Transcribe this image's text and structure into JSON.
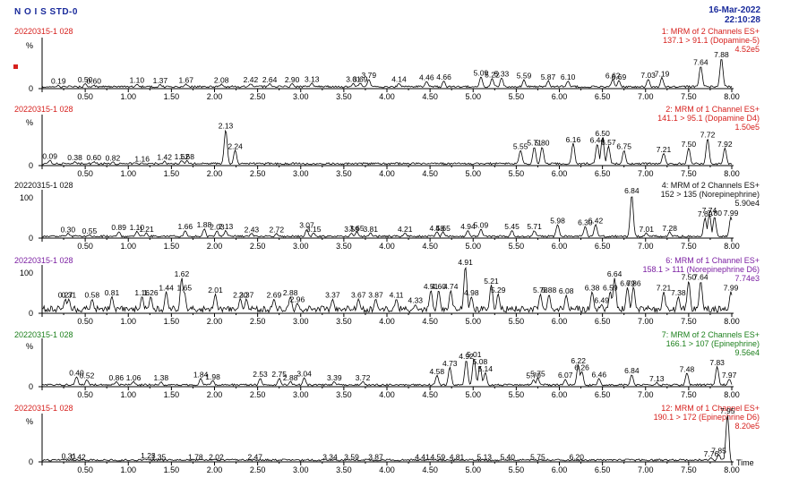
{
  "header": {
    "title": "N O I S STD-0",
    "date": "16-Mar-2022",
    "time": "22:10:28"
  },
  "xaxis": {
    "ticks": [
      "0.50",
      "1.00",
      "1.50",
      "2.00",
      "2.50",
      "3.00",
      "3.50",
      "4.00",
      "4.50",
      "5.00",
      "5.50",
      "6.00",
      "6.50",
      "7.00",
      "7.50",
      "8.00"
    ],
    "unit": "Time"
  },
  "chart_data": [
    {
      "type": "line",
      "sample": "20220315-1 028",
      "channel": "1: MRM of 2 Channels ES+",
      "transition": "137.1 > 91.1 (Dopamine-5)",
      "intensity": "4.52e5",
      "color": "#d6201d",
      "marker_color": "#d6201d",
      "ylim": [
        0,
        100
      ],
      "ytick": "%",
      "ytick_zero": "0",
      "peaks": [
        [
          0.19,
          "0.19"
        ],
        [
          0.5,
          "0.50"
        ],
        [
          0.6,
          "0.60"
        ],
        [
          1.1,
          "1.10"
        ],
        [
          1.37,
          "1.37"
        ],
        [
          1.67,
          "1.67"
        ],
        [
          2.08,
          "2.08"
        ],
        [
          2.42,
          "2.42"
        ],
        [
          2.64,
          "2.64"
        ],
        [
          2.9,
          "2.90"
        ],
        [
          3.13,
          "3.13"
        ],
        [
          3.61,
          "3.61"
        ],
        [
          3.69,
          "3.69"
        ],
        [
          3.79,
          "3.79"
        ],
        [
          4.14,
          "4.14"
        ],
        [
          4.46,
          "4.46"
        ],
        [
          4.66,
          "4.66"
        ],
        [
          5.09,
          "5.09"
        ],
        [
          5.22,
          "5.22"
        ],
        [
          5.33,
          "5.33"
        ],
        [
          5.59,
          "5.59"
        ],
        [
          5.87,
          "5.87"
        ],
        [
          6.1,
          "6.10"
        ],
        [
          6.62,
          "6.62"
        ],
        [
          6.69,
          "6.69"
        ],
        [
          7.03,
          "7.03"
        ],
        [
          7.19,
          "7.19"
        ],
        [
          7.64,
          "7.64"
        ],
        [
          7.88,
          "7.88"
        ]
      ],
      "peak_heights": [
        6,
        9,
        6,
        8,
        7,
        8,
        8,
        9,
        9,
        9,
        10,
        10,
        10,
        18,
        10,
        14,
        15,
        23,
        19,
        21,
        17,
        15,
        15,
        17,
        15,
        18,
        21,
        45,
        60
      ]
    },
    {
      "type": "line",
      "sample": "20220315-1 028",
      "channel": "2: MRM of 1 Channel ES+",
      "transition": "141.1 > 95.1 (Dopamine D4)",
      "intensity": "1.50e5",
      "color": "#d6201d",
      "ylim": [
        0,
        100
      ],
      "ytick": "%",
      "ytick_zero": "0",
      "peaks": [
        [
          0.09,
          "0.09"
        ],
        [
          0.38,
          "0.38"
        ],
        [
          0.6,
          "0.60"
        ],
        [
          0.82,
          "0.82"
        ],
        [
          1.16,
          "1.16"
        ],
        [
          1.42,
          "1.42"
        ],
        [
          1.62,
          "1.62"
        ],
        [
          1.68,
          "1.68"
        ],
        [
          2.13,
          "2.13"
        ],
        [
          2.24,
          "2.24"
        ],
        [
          5.55,
          "5.55"
        ],
        [
          5.71,
          "5.71"
        ],
        [
          5.8,
          "5.80"
        ],
        [
          6.16,
          "6.16"
        ],
        [
          6.44,
          "6.44"
        ],
        [
          6.5,
          "6.50"
        ],
        [
          6.57,
          "6.57"
        ],
        [
          6.75,
          "6.75"
        ],
        [
          7.21,
          "7.21"
        ],
        [
          7.5,
          "7.50"
        ],
        [
          7.72,
          "7.72"
        ],
        [
          7.92,
          "7.92"
        ]
      ],
      "peak_heights": [
        10,
        7,
        7,
        6,
        5,
        8,
        9,
        9,
        72,
        30,
        30,
        37,
        37,
        44,
        43,
        56,
        38,
        30,
        24,
        35,
        54,
        35
      ]
    },
    {
      "type": "line",
      "sample": "20220315-1 028",
      "channel": "4: MRM of 2 Channels ES+",
      "transition": "152 > 135 (Norepinephrine)",
      "intensity": "5.90e4",
      "color": "#111111",
      "ylim": [
        0,
        100
      ],
      "ytick": "100",
      "ytick_zero": "0",
      "peaks": [
        [
          0.3,
          "0.30"
        ],
        [
          0.55,
          "0.55"
        ],
        [
          0.89,
          "0.89"
        ],
        [
          1.1,
          "1.10"
        ],
        [
          1.21,
          "1.21"
        ],
        [
          1.66,
          "1.66"
        ],
        [
          1.88,
          "1.88"
        ],
        [
          2.03,
          "2.03"
        ],
        [
          2.13,
          "2.13"
        ],
        [
          2.43,
          "2.43"
        ],
        [
          2.72,
          "2.72"
        ],
        [
          3.07,
          "3.07"
        ],
        [
          3.15,
          "3.15"
        ],
        [
          3.59,
          "3.59"
        ],
        [
          3.65,
          "3.65"
        ],
        [
          3.81,
          "3.81"
        ],
        [
          4.21,
          "4.21"
        ],
        [
          4.58,
          "4.58"
        ],
        [
          4.65,
          "4.65"
        ],
        [
          4.94,
          "4.94"
        ],
        [
          5.09,
          "5.09"
        ],
        [
          5.45,
          "5.45"
        ],
        [
          5.71,
          "5.71"
        ],
        [
          5.98,
          "5.98"
        ],
        [
          6.3,
          "6.30"
        ],
        [
          6.42,
          "6.42"
        ],
        [
          6.84,
          "6.84"
        ],
        [
          7.01,
          "7.01"
        ],
        [
          7.28,
          "7.28"
        ],
        [
          7.69,
          "7.69"
        ],
        [
          7.74,
          "7.74"
        ],
        [
          7.8,
          "7.80"
        ],
        [
          7.99,
          "7.99"
        ]
      ],
      "peak_heights": [
        9,
        6,
        13,
        13,
        10,
        15,
        19,
        14,
        15,
        9,
        9,
        18,
        10,
        10,
        12,
        10,
        10,
        12,
        12,
        15,
        18,
        15,
        15,
        28,
        24,
        28,
        92,
        10,
        12,
        42,
        50,
        44,
        44
      ]
    },
    {
      "type": "line",
      "sample": "20220315-1 028",
      "channel": "6: MRM of 1 Channel ES+",
      "transition": "158.1 > 111 (Norepinephrine D6)",
      "intensity": "7.74e3",
      "color": "#7b1fa2",
      "ylim": [
        0,
        100
      ],
      "ytick": "100",
      "ytick_zero": "0",
      "peaks": [
        [
          0.27,
          "0.27"
        ],
        [
          0.31,
          "0.31"
        ],
        [
          0.58,
          "0.58"
        ],
        [
          0.81,
          "0.81"
        ],
        [
          1.16,
          "1.16"
        ],
        [
          1.26,
          "1.26"
        ],
        [
          1.44,
          "1.44"
        ],
        [
          1.62,
          "1.62"
        ],
        [
          1.65,
          "1.65"
        ],
        [
          2.01,
          "2.01"
        ],
        [
          2.3,
          "2.30"
        ],
        [
          2.37,
          "2.37"
        ],
        [
          2.69,
          "2.69"
        ],
        [
          2.88,
          "2.88"
        ],
        [
          2.96,
          "2.96"
        ],
        [
          3.37,
          "3.37"
        ],
        [
          3.67,
          "3.67"
        ],
        [
          3.87,
          "3.87"
        ],
        [
          4.11,
          "4.11"
        ],
        [
          4.33,
          "4.33"
        ],
        [
          4.51,
          "4.51"
        ],
        [
          4.6,
          "4.60"
        ],
        [
          4.74,
          "4.74"
        ],
        [
          4.91,
          "4.91"
        ],
        [
          4.98,
          "4.98"
        ],
        [
          5.21,
          "5.21"
        ],
        [
          5.29,
          "5.29"
        ],
        [
          5.78,
          "5.78"
        ],
        [
          5.88,
          "5.88"
        ],
        [
          6.08,
          "6.08"
        ],
        [
          6.38,
          "6.38"
        ],
        [
          6.49,
          "6.49"
        ],
        [
          6.59,
          "6.59"
        ],
        [
          6.64,
          "6.64"
        ],
        [
          6.79,
          "6.79"
        ],
        [
          6.86,
          "6.86"
        ],
        [
          7.21,
          "7.21"
        ],
        [
          7.38,
          "7.38"
        ],
        [
          7.5,
          "7.50"
        ],
        [
          7.64,
          "7.64"
        ],
        [
          7.99,
          "7.99"
        ]
      ],
      "peak_heights": [
        30,
        30,
        30,
        35,
        35,
        35,
        45,
        75,
        45,
        40,
        30,
        30,
        30,
        35,
        20,
        30,
        30,
        30,
        30,
        18,
        48,
        48,
        48,
        100,
        35,
        60,
        40,
        40,
        40,
        38,
        45,
        18,
        45,
        75,
        55,
        55,
        45,
        35,
        68,
        68,
        45
      ]
    },
    {
      "type": "line",
      "sample": "20220315-1 028",
      "channel": "7: MRM of 2 Channels ES+",
      "transition": "166.1 > 107 (Epinephrine)",
      "intensity": "9.56e4",
      "color": "#1b7f1b",
      "ylim": [
        0,
        100
      ],
      "ytick": "%",
      "ytick_zero": "0",
      "peaks": [
        [
          0.4,
          "0.40"
        ],
        [
          0.52,
          "0.52"
        ],
        [
          0.86,
          "0.86"
        ],
        [
          1.06,
          "1.06"
        ],
        [
          1.38,
          "1.38"
        ],
        [
          1.84,
          "1.84"
        ],
        [
          1.98,
          "1.98"
        ],
        [
          2.53,
          "2.53"
        ],
        [
          2.75,
          "2.75"
        ],
        [
          2.88,
          "2.88"
        ],
        [
          3.04,
          "3.04"
        ],
        [
          3.39,
          "3.39"
        ],
        [
          3.72,
          "3.72"
        ],
        [
          4.58,
          "4.58"
        ],
        [
          4.73,
          "4.73"
        ],
        [
          4.92,
          "4.92"
        ],
        [
          5.01,
          "5.01"
        ],
        [
          5.08,
          "5.08"
        ],
        [
          5.14,
          "5.14"
        ],
        [
          5.7,
          "5.70"
        ],
        [
          5.75,
          "5.75"
        ],
        [
          6.07,
          "6.07"
        ],
        [
          6.22,
          "6.22"
        ],
        [
          6.26,
          "6.26"
        ],
        [
          6.46,
          "6.46"
        ],
        [
          6.84,
          "6.84"
        ],
        [
          7.13,
          "7.13"
        ],
        [
          7.48,
          "7.48"
        ],
        [
          7.83,
          "7.83"
        ],
        [
          7.97,
          "7.97"
        ]
      ],
      "peak_heights": [
        20,
        14,
        10,
        10,
        10,
        16,
        12,
        17,
        17,
        10,
        18,
        10,
        10,
        23,
        40,
        56,
        60,
        44,
        29,
        14,
        18,
        15,
        46,
        32,
        16,
        25,
        8,
        28,
        42,
        15
      ]
    },
    {
      "type": "line",
      "sample": "20220315-1 028",
      "channel": "12: MRM of 1 Channel ES+",
      "transition": "190.1 > 172 (Epinephrine D6)",
      "intensity": "8.20e5",
      "color": "#d6201d",
      "marker_color": "#d6201d",
      "ylim": [
        0,
        100
      ],
      "ytick": "%",
      "ytick_zero": "0",
      "peaks": [
        [
          0.31,
          "0.31"
        ],
        [
          0.42,
          "0.42"
        ],
        [
          1.23,
          "1.23"
        ],
        [
          1.35,
          "1.35"
        ],
        [
          1.78,
          "1.78"
        ],
        [
          2.02,
          "2.02"
        ],
        [
          2.47,
          "2.47"
        ],
        [
          3.34,
          "3.34"
        ],
        [
          3.59,
          "3.59"
        ],
        [
          3.87,
          "3.87"
        ],
        [
          4.41,
          "4.41"
        ],
        [
          4.59,
          "4.59"
        ],
        [
          4.81,
          "4.81"
        ],
        [
          5.13,
          "5.13"
        ],
        [
          5.4,
          "5.40"
        ],
        [
          5.75,
          "5.75"
        ],
        [
          6.2,
          "6.20"
        ],
        [
          7.76,
          "7.76"
        ],
        [
          7.85,
          "7.85"
        ],
        [
          7.95,
          "7.95"
        ]
      ],
      "peak_heights": [
        3,
        1,
        4,
        1,
        1,
        1,
        1,
        1,
        1,
        1,
        1,
        1,
        1,
        1,
        1,
        1,
        1,
        8,
        14,
        100
      ],
      "x_unit": "Time"
    }
  ]
}
